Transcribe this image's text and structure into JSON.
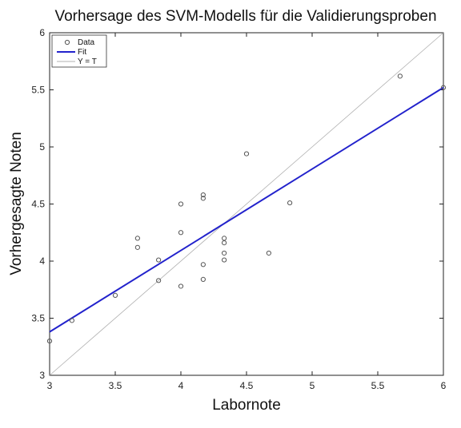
{
  "chart_data": {
    "type": "scatter",
    "title": "Vorhersage des SVM-Modells für die Validierungsproben",
    "xlabel": "Labornote",
    "ylabel": "Vorhergesagte Noten",
    "xlim": [
      3,
      6
    ],
    "ylim": [
      3,
      6
    ],
    "xticks": [
      3,
      3.5,
      4,
      4.5,
      5,
      5.5,
      6
    ],
    "xtick_labels": [
      "3",
      "3.5",
      "4",
      "4.5",
      "5",
      "5.5",
      "6"
    ],
    "yticks": [
      3,
      3.5,
      4,
      4.5,
      5,
      5.5,
      6
    ],
    "ytick_labels": [
      "3",
      "3.5",
      "4",
      "4.5",
      "5",
      "5.5",
      "6"
    ],
    "grid": false,
    "legend_position": "top-left",
    "series": [
      {
        "name": "Data",
        "kind": "scatter",
        "marker": "open-circle",
        "color": "#555555",
        "points": [
          [
            3.0,
            3.3
          ],
          [
            3.17,
            3.48
          ],
          [
            3.5,
            3.7
          ],
          [
            3.67,
            4.2
          ],
          [
            3.67,
            4.12
          ],
          [
            3.83,
            4.01
          ],
          [
            3.83,
            3.83
          ],
          [
            4.0,
            4.5
          ],
          [
            4.0,
            4.25
          ],
          [
            4.0,
            3.78
          ],
          [
            4.17,
            4.58
          ],
          [
            4.17,
            4.55
          ],
          [
            4.17,
            3.97
          ],
          [
            4.17,
            3.84
          ],
          [
            4.33,
            4.2
          ],
          [
            4.33,
            4.16
          ],
          [
            4.33,
            4.07
          ],
          [
            4.33,
            4.01
          ],
          [
            4.5,
            4.94
          ],
          [
            4.67,
            4.07
          ],
          [
            4.83,
            4.51
          ],
          [
            5.67,
            5.62
          ],
          [
            6.0,
            5.52
          ]
        ]
      },
      {
        "name": "Fit",
        "kind": "line",
        "color": "#2222cc",
        "points": [
          [
            3.0,
            3.38
          ],
          [
            6.0,
            5.52
          ]
        ]
      },
      {
        "name": "Y = T",
        "kind": "line",
        "color": "#b0b0b0",
        "points": [
          [
            3.0,
            3.0
          ],
          [
            6.0,
            6.0
          ]
        ]
      }
    ]
  }
}
